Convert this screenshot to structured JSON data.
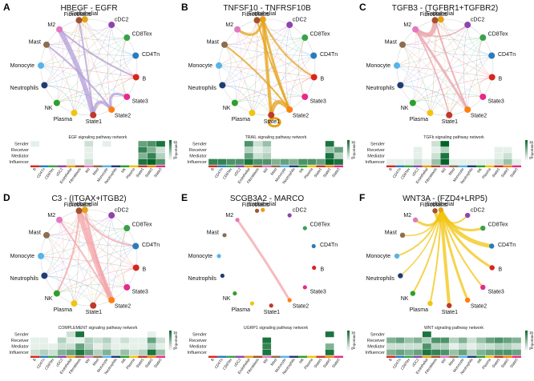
{
  "cell_types": [
    "B",
    "CD4Tn",
    "CD8Tex",
    "cDC2",
    "Endothelial",
    "Fibroblasts",
    "M2",
    "Mast",
    "Monocyte",
    "Neutrophils",
    "NK",
    "Plasma",
    "State1",
    "State2",
    "State3"
  ],
  "cell_colors": {
    "B": "#d7261e",
    "CD4Tn": "#2b7bba",
    "CD8Tex": "#3aa14b",
    "cDC2": "#8e44ad",
    "Endothelial": "#e6a117",
    "Fibroblasts": "#a0522d",
    "M2": "#e377c2",
    "Mast": "#8c6d4f",
    "Monocyte": "#56b4e9",
    "Neutrophils": "#1f3b73",
    "NK": "#2ca02c",
    "Plasma": "#f1c40f",
    "State1": "#c0392b",
    "State2": "#ff7f0e",
    "State3": "#e7298a"
  },
  "legend": {
    "label": "Importance",
    "min": "0",
    "max": "1"
  },
  "roles": [
    "Sender",
    "Receiver",
    "Mediator",
    "Influencer"
  ],
  "panels": [
    {
      "letter": "A",
      "title": "HBEGF - EGFR",
      "network_title": "EGF signaling pathway network",
      "edge_color": "#b39ddb",
      "heatmap": [
        [
          0.1,
          0,
          0,
          0,
          0,
          0,
          0.2,
          0,
          0.1,
          0,
          0,
          0,
          0.6,
          0.7,
          0.9
        ],
        [
          0,
          0,
          0,
          0,
          0,
          0,
          0.1,
          0,
          0,
          0,
          0,
          0,
          0.8,
          0.5,
          0.2
        ],
        [
          0,
          0,
          0,
          0,
          0,
          0,
          0.1,
          0,
          0,
          0,
          0,
          0,
          0.5,
          0.8,
          0.3
        ],
        [
          0,
          0,
          0,
          0,
          0.1,
          0,
          0.2,
          0,
          0,
          0,
          0,
          0,
          0.9,
          1,
          0.7
        ]
      ]
    },
    {
      "letter": "B",
      "title": "TNFSF10 - TNFRSF10B",
      "network_title": "TRAIL signaling pathway network",
      "edge_color": "#e6a117",
      "heatmap": [
        [
          0,
          0,
          0,
          0,
          0.7,
          0.2,
          0.4,
          0,
          0,
          0,
          0,
          0,
          0,
          0.9,
          0
        ],
        [
          0,
          0,
          0,
          0,
          0.3,
          0.1,
          0.2,
          0,
          0,
          0,
          0,
          0,
          0,
          0.4,
          0.6
        ],
        [
          0,
          0,
          0,
          0,
          0.6,
          0.2,
          0.3,
          0,
          0,
          0,
          0,
          0,
          0,
          0.9,
          0.3
        ],
        [
          0.8,
          0.8,
          0.7,
          0.7,
          0.9,
          0.7,
          0.7,
          0.5,
          0.6,
          0.5,
          0.7,
          0.7,
          0.6,
          1,
          0.9
        ]
      ]
    },
    {
      "letter": "C",
      "title": "TGFB3 - (TGFBR1+TGFBR2)",
      "network_title": "TGFb signaling pathway network",
      "edge_color": "#e9a0a8",
      "heatmap": [
        [
          0,
          0,
          0,
          0,
          0,
          0.2,
          1,
          0,
          0,
          0,
          0,
          0,
          0,
          0,
          0
        ],
        [
          0,
          0,
          0,
          0.1,
          0,
          0.1,
          0.3,
          0,
          0,
          0,
          0,
          0,
          0.1,
          0.1,
          0
        ],
        [
          0,
          0,
          0,
          0.1,
          0,
          0.2,
          0.9,
          0,
          0,
          0,
          0,
          0,
          0.1,
          0.2,
          0
        ],
        [
          0.1,
          0.1,
          0.1,
          0.2,
          0.1,
          0.4,
          1,
          0.1,
          0.1,
          0.1,
          0.1,
          0.1,
          0.2,
          0.4,
          0.1
        ]
      ]
    },
    {
      "letter": "D",
      "title": "C3 - (ITGAX+ITGB2)",
      "network_title": "COMPLEMENT signaling pathway network",
      "edge_color": "#f4a3a8",
      "heatmap": [
        [
          0,
          0,
          0,
          0,
          0.2,
          0.9,
          0,
          0,
          0,
          0,
          0,
          0,
          0,
          0.1,
          0
        ],
        [
          0.1,
          0.1,
          0,
          0.3,
          0.1,
          0.1,
          0.3,
          0.2,
          0.3,
          0.1,
          0.2,
          0.1,
          0.1,
          0.6,
          0.2
        ],
        [
          0.1,
          0.1,
          0.1,
          0.2,
          0.2,
          0.6,
          0.3,
          0.1,
          0.2,
          0.1,
          0.1,
          0.1,
          0.1,
          0.3,
          0.1
        ],
        [
          0.2,
          0.3,
          0.2,
          0.5,
          0.6,
          0.9,
          0.6,
          0.3,
          0.5,
          0.2,
          0.4,
          0.2,
          0.3,
          0.9,
          0.4
        ]
      ]
    },
    {
      "letter": "E",
      "title": "SCGB3A2 - MARCO",
      "network_title": "UGRP1 signaling pathway network",
      "edge_color": "#f4a3a8",
      "heatmap": [
        [
          0,
          0,
          0,
          0,
          0,
          0,
          0,
          0,
          0,
          0,
          0,
          0,
          0,
          0.9,
          0
        ],
        [
          0,
          0,
          0,
          0,
          0,
          0,
          0.9,
          0,
          0,
          0,
          0,
          0,
          0,
          0,
          0
        ],
        [
          0,
          0,
          0,
          0,
          0,
          0,
          0.8,
          0,
          0,
          0,
          0,
          0,
          0,
          0.5,
          0
        ],
        [
          0,
          0,
          0,
          0,
          0,
          0,
          0.9,
          0,
          0,
          0,
          0,
          0,
          0,
          0.9,
          0
        ]
      ]
    },
    {
      "letter": "F",
      "title": "WNT3A - (FZD4+LRP5)",
      "network_title": "WNT signaling pathway network",
      "edge_color": "#f1c40f",
      "heatmap": [
        [
          0,
          0,
          0,
          0,
          0.9,
          0,
          0,
          0,
          0,
          0,
          0,
          0,
          0,
          0,
          0
        ],
        [
          0.5,
          0.6,
          0.4,
          0.5,
          0.3,
          0.7,
          0.7,
          0.3,
          0.5,
          0.2,
          0.4,
          0.6,
          0.7,
          0.6,
          0.5
        ],
        [
          0.2,
          0.2,
          0.2,
          0.2,
          0.7,
          0.3,
          0.3,
          0.1,
          0.2,
          0.1,
          0.2,
          0.2,
          0.3,
          0.3,
          0.2
        ],
        [
          0.5,
          0.6,
          0.5,
          0.6,
          0.9,
          0.8,
          0.7,
          0.4,
          0.6,
          0.3,
          0.5,
          0.6,
          0.7,
          0.7,
          0.6
        ]
      ]
    }
  ]
}
